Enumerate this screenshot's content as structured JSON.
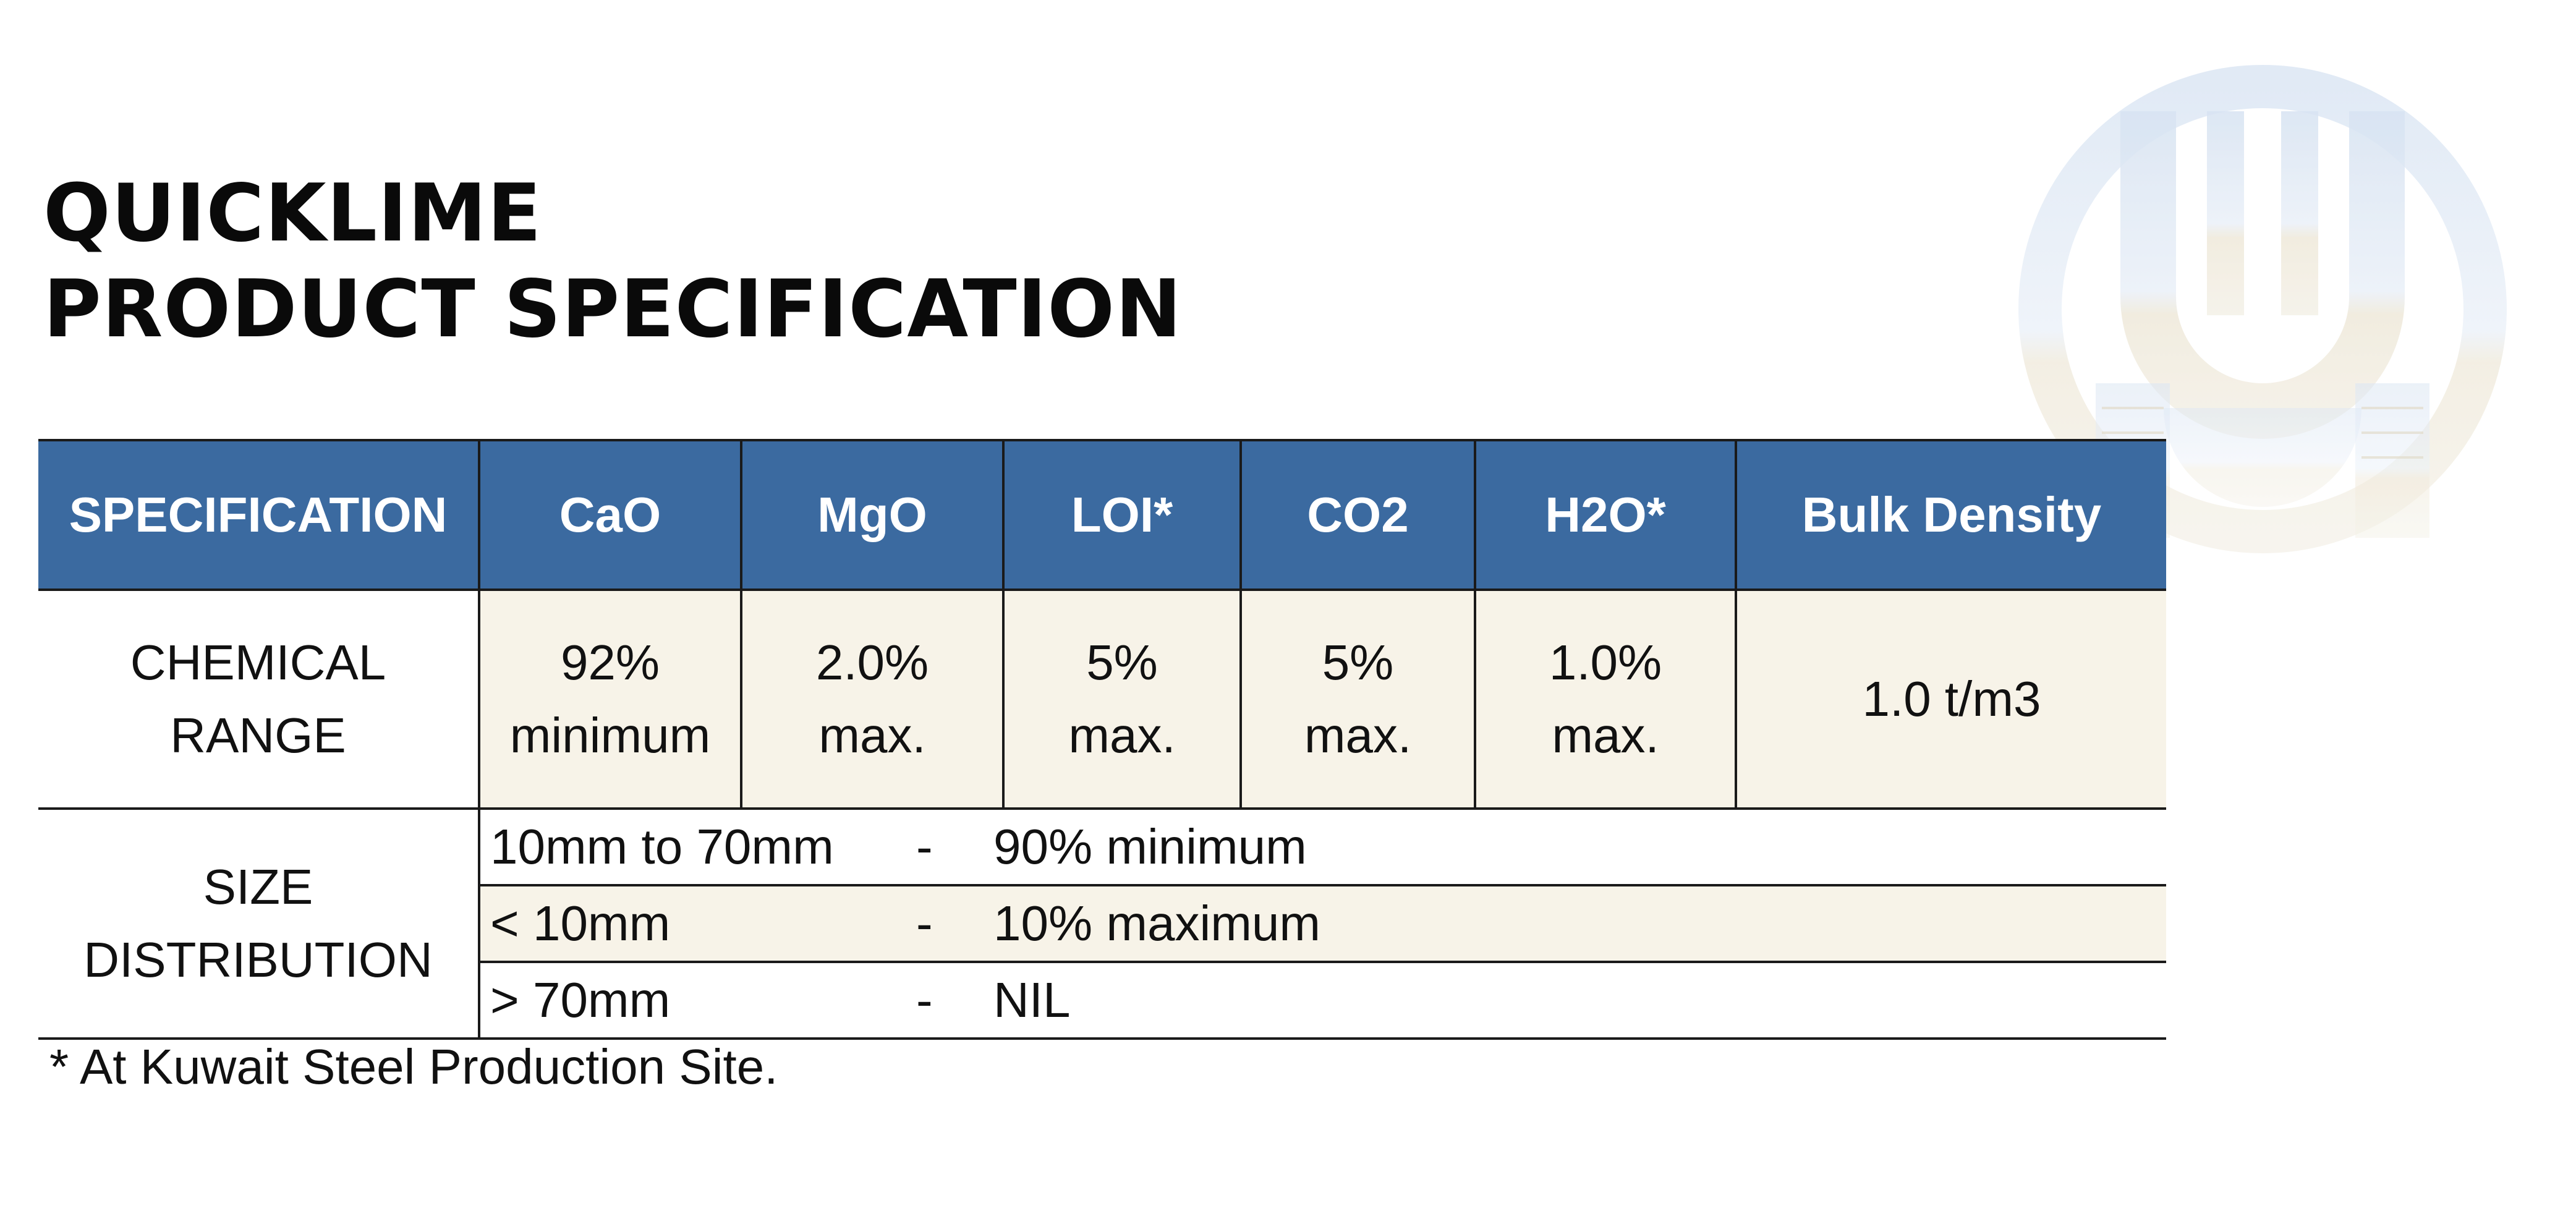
{
  "heading": {
    "line1": "QUICKLIME",
    "line2": "PRODUCT SPECIFICATION"
  },
  "logo": {
    "icon": "company-logo-watermark",
    "color": "#c8d6ea"
  },
  "table": {
    "headers": [
      "SPECIFICATION",
      "CaO",
      "MgO",
      "LOI*",
      "CO2",
      "H2O*",
      "Bulk Density"
    ],
    "chemical_range": {
      "label_line1": "CHEMICAL",
      "label_line2": "RANGE",
      "values": [
        {
          "line1": "92%",
          "line2": "minimum"
        },
        {
          "line1": "2.0%",
          "line2": "max."
        },
        {
          "line1": "5%",
          "line2": "max."
        },
        {
          "line1": "5%",
          "line2": "max."
        },
        {
          "line1": "1.0%",
          "line2": "max."
        },
        {
          "line1": "1.0 t/m3",
          "line2": ""
        }
      ]
    },
    "size_distribution": {
      "label_line1": "SIZE",
      "label_line2": "DISTRIBUTION",
      "rows": [
        {
          "range": "10mm to 70mm",
          "dash": "-",
          "value": "90% minimum"
        },
        {
          "range": "< 10mm",
          "dash": "-",
          "value": "10% maximum"
        },
        {
          "range": "> 70mm",
          "dash": "-",
          "value": "NIL"
        }
      ]
    }
  },
  "footnote": "* At Kuwait Steel Production Site.",
  "colors": {
    "header_bg": "#3b6aa0",
    "cell_bg": "#f7f3e8",
    "border": "#1a1a1a"
  }
}
